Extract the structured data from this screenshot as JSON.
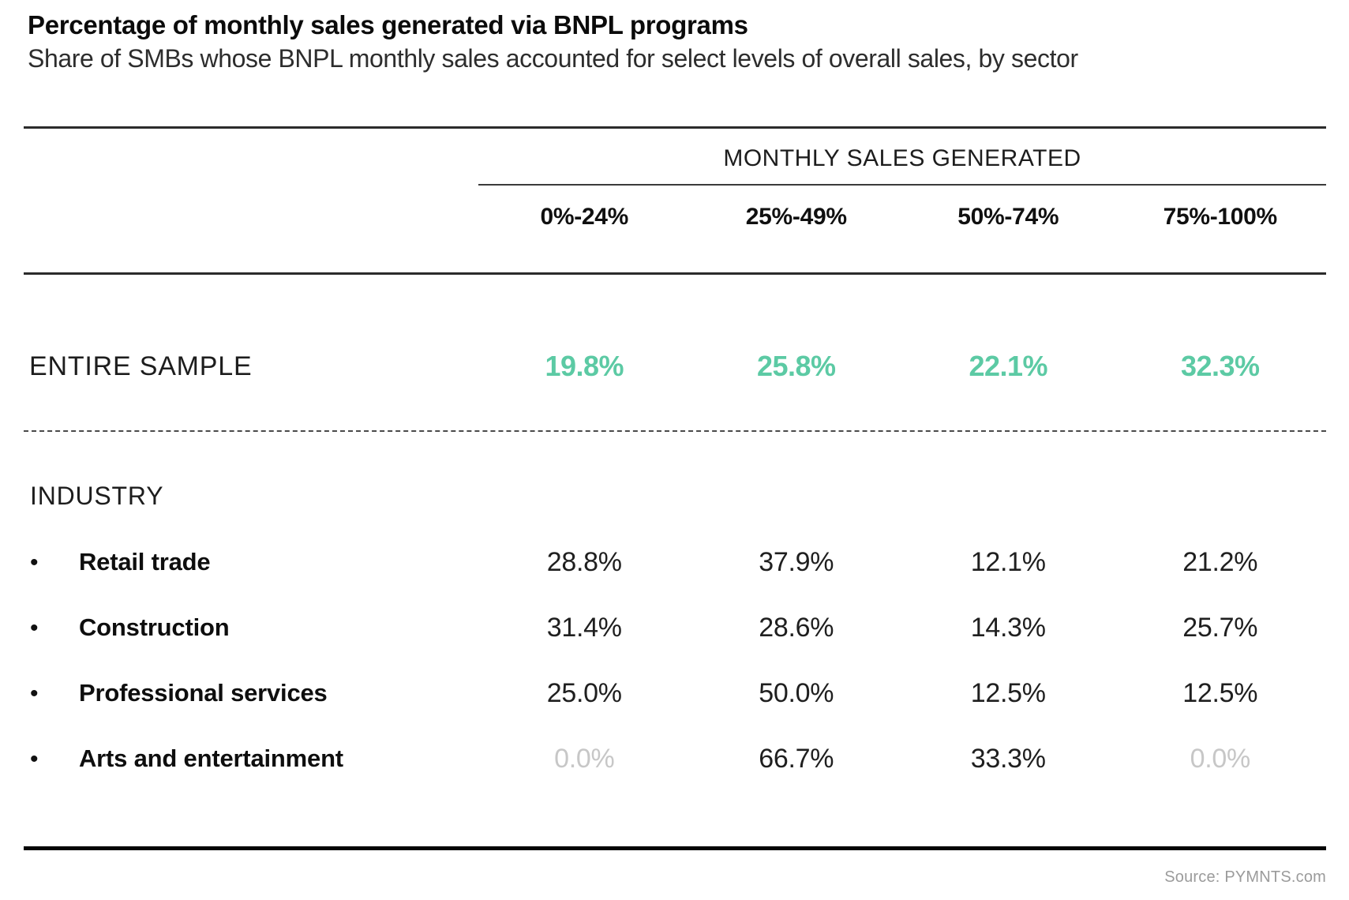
{
  "title": "Percentage of monthly sales generated via BNPL programs",
  "subtitle": "Share of SMBs whose BNPL monthly sales accounted for select levels of overall sales, by sector",
  "source": "Source: PYMNTS.com",
  "colors": {
    "accent_teal": "#5ccaa4",
    "muted_value": "#c7c7c7",
    "rule_dark": "#2b2b2b",
    "source_gray": "#9b9b9b"
  },
  "chart_data": {
    "type": "table",
    "title": "Percentage of monthly sales generated via BNPL programs",
    "subtitle": "Share of SMBs whose BNPL monthly sales accounted for select levels of overall sales, by sector",
    "column_group_label": "MONTHLY SALES GENERATED",
    "columns": [
      "0%-24%",
      "25%-49%",
      "50%-74%",
      "75%-100%"
    ],
    "entire_sample": {
      "label": "ENTIRE SAMPLE",
      "values": [
        "19.8%",
        "25.8%",
        "22.1%",
        "32.3%"
      ]
    },
    "industry_section_label": "INDUSTRY",
    "industries": [
      {
        "label": "Retail trade",
        "values": [
          "28.8%",
          "37.9%",
          "12.1%",
          "21.2%"
        ]
      },
      {
        "label": "Construction",
        "values": [
          "31.4%",
          "28.6%",
          "14.3%",
          "25.7%"
        ]
      },
      {
        "label": "Professional services",
        "values": [
          "25.0%",
          "50.0%",
          "12.5%",
          "12.5%"
        ]
      },
      {
        "label": "Arts and entertainment",
        "values": [
          "0.0%",
          "66.7%",
          "33.3%",
          "0.0%"
        ]
      }
    ]
  }
}
